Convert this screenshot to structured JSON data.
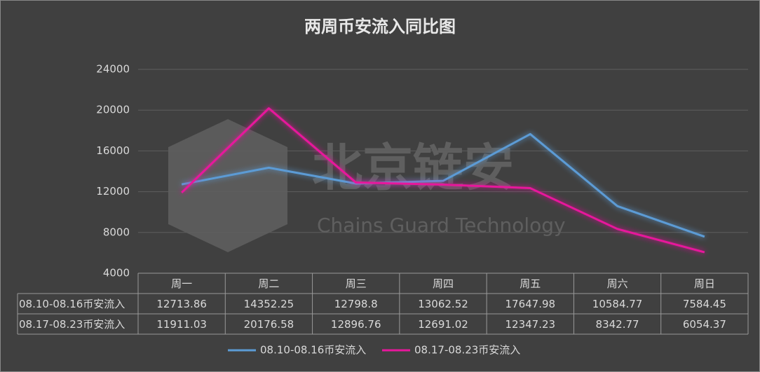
{
  "chart_data": {
    "type": "line",
    "title": "两周币安流入同比图",
    "watermark_text": "北京链安",
    "watermark_subtext": "Chains Guard Technology",
    "categories": [
      "周一",
      "周二",
      "周三",
      "周四",
      "周五",
      "周六",
      "周日"
    ],
    "series": [
      {
        "name": "08.10-08.16币安流入",
        "color": "#5b9bd5",
        "values": [
          12713.86,
          14352.25,
          12798.8,
          13062.52,
          17647.98,
          10584.77,
          7584.45
        ]
      },
      {
        "name": "08.17-08.23币安流入",
        "color": "#e8179c",
        "values": [
          11911.03,
          20176.58,
          12896.76,
          12691.02,
          12347.23,
          8342.77,
          6054.37
        ]
      }
    ],
    "ylim": [
      4000,
      24000
    ],
    "yticks": [
      4000,
      8000,
      12000,
      16000,
      20000,
      24000
    ],
    "grid": true,
    "legend": "bottom"
  }
}
